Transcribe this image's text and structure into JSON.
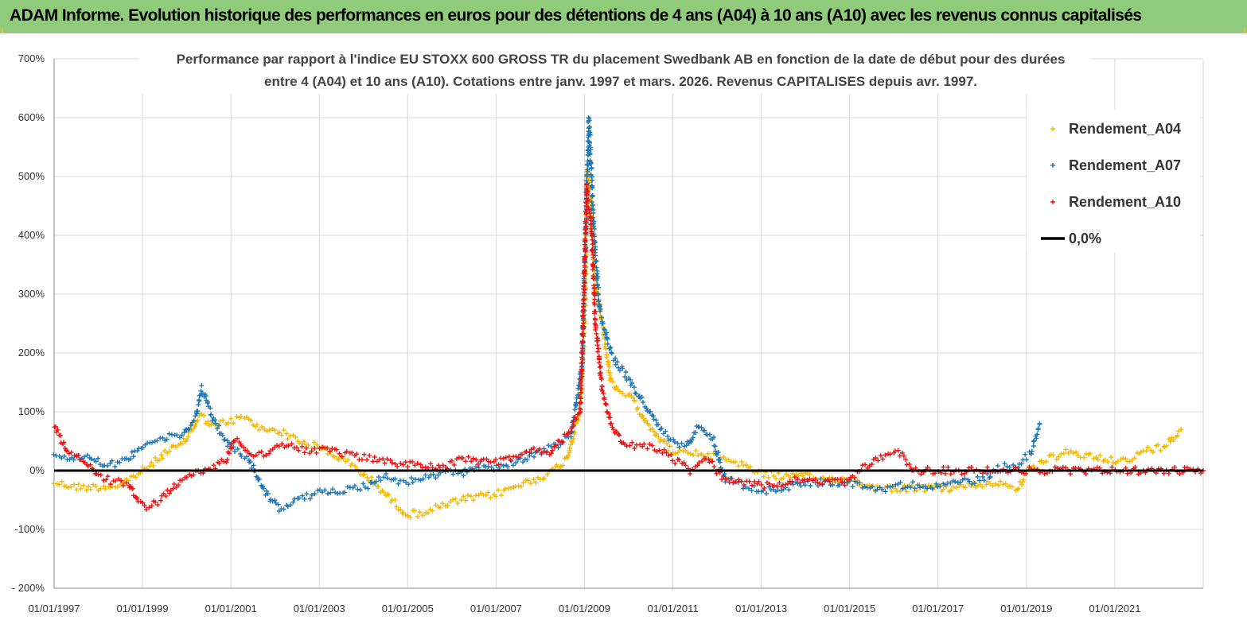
{
  "header": {
    "title": "ADAM Informe. Evolution historique des performances en euros pour des détentions de 4 ans (A04) à 10 ans (A10) avec les revenus connus capitalisés"
  },
  "colors": {
    "header_bg": "#8fcb7a",
    "A04": "#f5b800",
    "A07": "#1f77b4",
    "A10": "#ee1111",
    "zero": "#000000",
    "grid": "#d9d9d9"
  },
  "chart_data": {
    "type": "scatter",
    "title_line1": "Performance par rapport à l'indice EU STOXX 600 GROSS TR  du placement Swedbank AB en fonction de la date de début pour des durées",
    "title_line2": "entre 4 (A04) et 10 ans (A10). Cotations entre janv. 1997 et mars. 2026. Revenus CAPITALISES depuis avr. 1997.",
    "x_range": [
      1997.0,
      2023.0
    ],
    "y_range": [
      -200,
      700
    ],
    "y_ticks": [
      -200,
      -100,
      0,
      100,
      200,
      300,
      400,
      500,
      600,
      700
    ],
    "y_tick_labels": [
      "- 200%",
      "-100%",
      "0%",
      "100%",
      "200%",
      "300%",
      "400%",
      "500%",
      "600%",
      "700%"
    ],
    "x_ticks": [
      1997,
      1999,
      2001,
      2003,
      2005,
      2007,
      2009,
      2011,
      2013,
      2015,
      2017,
      2019,
      2021
    ],
    "x_tick_labels": [
      "01/01/1997",
      "01/01/1999",
      "01/01/2001",
      "01/01/2003",
      "01/01/2005",
      "01/01/2007",
      "01/01/2009",
      "01/01/2011",
      "01/01/2013",
      "01/01/2015",
      "01/01/2017",
      "01/01/2019",
      "01/01/2021"
    ],
    "legend": {
      "position": "top-right",
      "items": [
        {
          "key": "A04",
          "label": "Rendement_A04"
        },
        {
          "key": "A07",
          "label": "Rendement_A07"
        },
        {
          "key": "A10",
          "label": "Rendement_A10"
        },
        {
          "key": "zero",
          "label": "0,0%"
        }
      ]
    },
    "series": [
      {
        "name": "Rendement_A04",
        "key": "A04",
        "points": [
          [
            1997.0,
            -20
          ],
          [
            1997.5,
            -28
          ],
          [
            1998.0,
            -28
          ],
          [
            1998.5,
            -25
          ],
          [
            1998.9,
            -5
          ],
          [
            1999.2,
            10
          ],
          [
            1999.5,
            30
          ],
          [
            1999.9,
            45
          ],
          [
            2000.2,
            80
          ],
          [
            2000.3,
            95
          ],
          [
            2000.6,
            75
          ],
          [
            2001.0,
            85
          ],
          [
            2001.3,
            90
          ],
          [
            2001.7,
            70
          ],
          [
            2002.0,
            70
          ],
          [
            2002.3,
            60
          ],
          [
            2002.7,
            45
          ],
          [
            2003.0,
            40
          ],
          [
            2003.5,
            20
          ],
          [
            2003.9,
            0
          ],
          [
            2004.3,
            -25
          ],
          [
            2004.7,
            -55
          ],
          [
            2005.0,
            -75
          ],
          [
            2005.4,
            -70
          ],
          [
            2005.8,
            -60
          ],
          [
            2006.2,
            -50
          ],
          [
            2006.6,
            -45
          ],
          [
            2007.0,
            -40
          ],
          [
            2007.5,
            -25
          ],
          [
            2007.9,
            -15
          ],
          [
            2008.3,
            0
          ],
          [
            2008.6,
            20
          ],
          [
            2008.9,
            100
          ],
          [
            2009.0,
            250
          ],
          [
            2009.07,
            520
          ],
          [
            2009.15,
            450
          ],
          [
            2009.25,
            320
          ],
          [
            2009.4,
            250
          ],
          [
            2009.6,
            150
          ],
          [
            2009.8,
            130
          ],
          [
            2010.0,
            130
          ],
          [
            2010.3,
            95
          ],
          [
            2010.7,
            55
          ],
          [
            2011.0,
            30
          ],
          [
            2011.4,
            30
          ],
          [
            2011.8,
            25
          ],
          [
            2012.2,
            20
          ],
          [
            2012.6,
            10
          ],
          [
            2013.0,
            -5
          ],
          [
            2013.5,
            -10
          ],
          [
            2014.0,
            -10
          ],
          [
            2014.5,
            -15
          ],
          [
            2015.0,
            -15
          ],
          [
            2015.4,
            -25
          ],
          [
            2015.8,
            -30
          ],
          [
            2016.3,
            -30
          ],
          [
            2016.8,
            -30
          ],
          [
            2017.3,
            -30
          ],
          [
            2017.8,
            -25
          ],
          [
            2018.3,
            -20
          ],
          [
            2018.8,
            -30
          ],
          [
            2019.0,
            -5
          ],
          [
            2019.5,
            20
          ],
          [
            2019.9,
            30
          ],
          [
            2020.4,
            25
          ],
          [
            2020.9,
            20
          ],
          [
            2021.3,
            15
          ],
          [
            2021.7,
            35
          ],
          [
            2022.1,
            40
          ],
          [
            2022.5,
            70
          ]
        ]
      },
      {
        "name": "Rendement_A07",
        "key": "A07",
        "points": [
          [
            1997.0,
            30
          ],
          [
            1997.4,
            20
          ],
          [
            1997.8,
            25
          ],
          [
            1998.2,
            10
          ],
          [
            1998.6,
            15
          ],
          [
            1999.0,
            45
          ],
          [
            1999.5,
            55
          ],
          [
            1999.9,
            60
          ],
          [
            2000.2,
            90
          ],
          [
            2000.35,
            140
          ],
          [
            2000.6,
            85
          ],
          [
            2001.0,
            40
          ],
          [
            2001.4,
            20
          ],
          [
            2001.8,
            -40
          ],
          [
            2002.1,
            -65
          ],
          [
            2002.5,
            -50
          ],
          [
            2002.9,
            -40
          ],
          [
            2003.3,
            -35
          ],
          [
            2003.7,
            -30
          ],
          [
            2004.1,
            -25
          ],
          [
            2004.5,
            -10
          ],
          [
            2004.9,
            -20
          ],
          [
            2005.3,
            -15
          ],
          [
            2005.8,
            -5
          ],
          [
            2006.2,
            -5
          ],
          [
            2006.6,
            10
          ],
          [
            2007.0,
            5
          ],
          [
            2007.5,
            15
          ],
          [
            2007.9,
            30
          ],
          [
            2008.3,
            40
          ],
          [
            2008.7,
            60
          ],
          [
            2008.95,
            180
          ],
          [
            2009.05,
            480
          ],
          [
            2009.1,
            600
          ],
          [
            2009.2,
            420
          ],
          [
            2009.35,
            270
          ],
          [
            2009.6,
            200
          ],
          [
            2009.9,
            165
          ],
          [
            2010.3,
            120
          ],
          [
            2010.7,
            70
          ],
          [
            2011.0,
            50
          ],
          [
            2011.3,
            40
          ],
          [
            2011.6,
            80
          ],
          [
            2011.9,
            55
          ],
          [
            2012.2,
            -15
          ],
          [
            2012.6,
            -25
          ],
          [
            2013.0,
            -35
          ],
          [
            2013.5,
            -30
          ],
          [
            2014.0,
            -20
          ],
          [
            2014.5,
            -20
          ],
          [
            2015.0,
            -20
          ],
          [
            2015.4,
            -30
          ],
          [
            2015.8,
            -30
          ],
          [
            2016.2,
            -25
          ],
          [
            2016.6,
            -25
          ],
          [
            2017.0,
            -25
          ],
          [
            2017.5,
            -20
          ],
          [
            2018.0,
            -15
          ],
          [
            2018.4,
            5
          ],
          [
            2018.8,
            10
          ],
          [
            2019.1,
            30
          ],
          [
            2019.3,
            80
          ]
        ]
      },
      {
        "name": "Rendement_A10",
        "key": "A10",
        "points": [
          [
            1997.0,
            75
          ],
          [
            1997.3,
            35
          ],
          [
            1997.7,
            15
          ],
          [
            1998.0,
            -10
          ],
          [
            1998.4,
            -20
          ],
          [
            1998.7,
            -20
          ],
          [
            1998.9,
            -55
          ],
          [
            1999.1,
            -65
          ],
          [
            1999.4,
            -50
          ],
          [
            1999.8,
            -20
          ],
          [
            2000.2,
            -5
          ],
          [
            2000.6,
            5
          ],
          [
            2000.9,
            20
          ],
          [
            2001.1,
            55
          ],
          [
            2001.4,
            30
          ],
          [
            2001.8,
            30
          ],
          [
            2002.2,
            45
          ],
          [
            2002.6,
            35
          ],
          [
            2003.0,
            35
          ],
          [
            2003.4,
            30
          ],
          [
            2003.8,
            25
          ],
          [
            2004.2,
            20
          ],
          [
            2004.6,
            15
          ],
          [
            2005.0,
            10
          ],
          [
            2005.4,
            10
          ],
          [
            2005.8,
            5
          ],
          [
            2006.2,
            20
          ],
          [
            2006.6,
            15
          ],
          [
            2007.0,
            15
          ],
          [
            2007.4,
            20
          ],
          [
            2007.8,
            35
          ],
          [
            2008.2,
            30
          ],
          [
            2008.6,
            60
          ],
          [
            2008.9,
            100
          ],
          [
            2009.0,
            330
          ],
          [
            2009.05,
            480
          ],
          [
            2009.15,
            420
          ],
          [
            2009.25,
            250
          ],
          [
            2009.4,
            140
          ],
          [
            2009.6,
            80
          ],
          [
            2009.9,
            40
          ],
          [
            2010.3,
            45
          ],
          [
            2010.7,
            35
          ],
          [
            2011.0,
            20
          ],
          [
            2011.4,
            0
          ],
          [
            2011.8,
            20
          ],
          [
            2012.1,
            -10
          ],
          [
            2012.5,
            -20
          ],
          [
            2012.9,
            -20
          ],
          [
            2013.3,
            -30
          ],
          [
            2013.7,
            -15
          ],
          [
            2014.1,
            -20
          ],
          [
            2014.5,
            -20
          ],
          [
            2014.9,
            -20
          ],
          [
            2015.3,
            5
          ],
          [
            2015.7,
            20
          ],
          [
            2016.1,
            30
          ],
          [
            2016.5,
            0
          ],
          [
            2017.0,
            0
          ],
          [
            2018.0,
            0
          ],
          [
            2019.0,
            0
          ],
          [
            2020.0,
            0
          ],
          [
            2021.0,
            0
          ],
          [
            2022.0,
            0
          ],
          [
            2023.0,
            0
          ]
        ]
      }
    ]
  }
}
